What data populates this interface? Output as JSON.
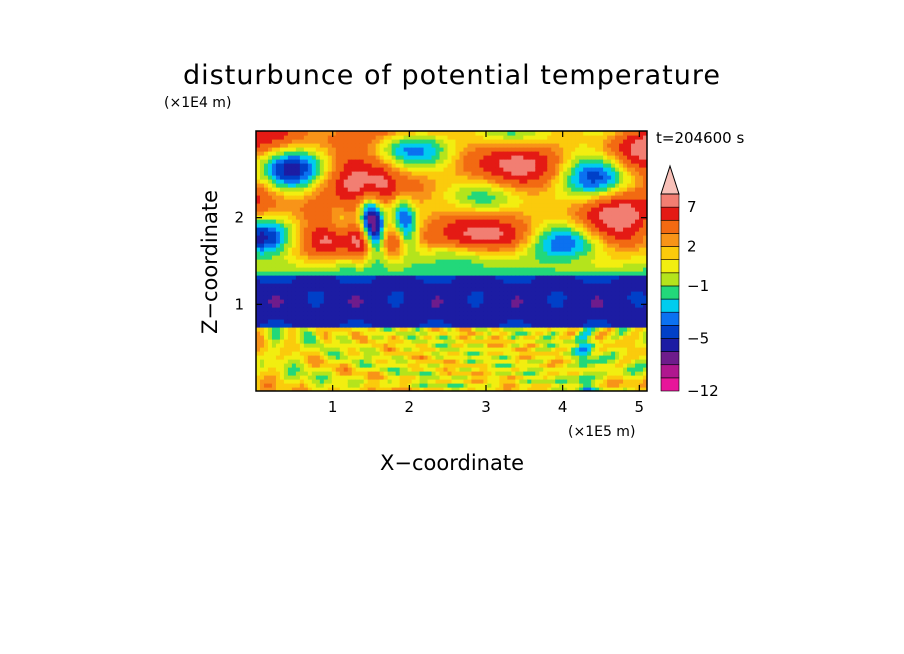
{
  "chart_data": {
    "type": "heatmap",
    "title": "disturbunce of potential temperature",
    "time_label": "t=204600 s",
    "xlabel": "X−coordinate",
    "ylabel": "Z−coordinate",
    "x_unit": "(×1E5 m)",
    "y_unit": "(×1E4 m)",
    "xlim": [
      0,
      5.1
    ],
    "ylim": [
      0,
      3.0
    ],
    "x_ticks": [
      "1",
      "2",
      "3",
      "4",
      "5"
    ],
    "y_ticks": [
      "1",
      "2"
    ],
    "colorbar": {
      "levels": [
        -12,
        -10,
        -8,
        -6,
        -5,
        -4,
        -3,
        -2,
        -1,
        0,
        1,
        2,
        3,
        5,
        7,
        9,
        11
      ],
      "colors": [
        "#e8169a",
        "#b0178f",
        "#6e1c8c",
        "#1c1ca3",
        "#0040c8",
        "#0b71f0",
        "#00ccee",
        "#22d87a",
        "#b4e41c",
        "#f2ee10",
        "#fbcb0c",
        "#f89418",
        "#f26a12",
        "#e41a14",
        "#f27e72",
        "#f8c0b8"
      ],
      "labels": [
        {
          "value": 7,
          "text": "7"
        },
        {
          "value": 2,
          "text": "2"
        },
        {
          "value": -1,
          "text": "−1"
        },
        {
          "value": -5,
          "text": "−5"
        },
        {
          "value": -12,
          "text": "−12"
        }
      ],
      "extend": "max"
    },
    "features": [
      {
        "region": "stratosphere z 1.4-3.0",
        "pattern": "wave field",
        "range": [
          -6,
          9
        ]
      },
      {
        "region": "band z 0.7-1.4",
        "pattern": "cold layer",
        "range": [
          -6,
          -4
        ]
      },
      {
        "region": "lower troposphere z 0-0.7",
        "pattern": "mostly near zero",
        "range": [
          -3,
          3
        ]
      }
    ]
  }
}
